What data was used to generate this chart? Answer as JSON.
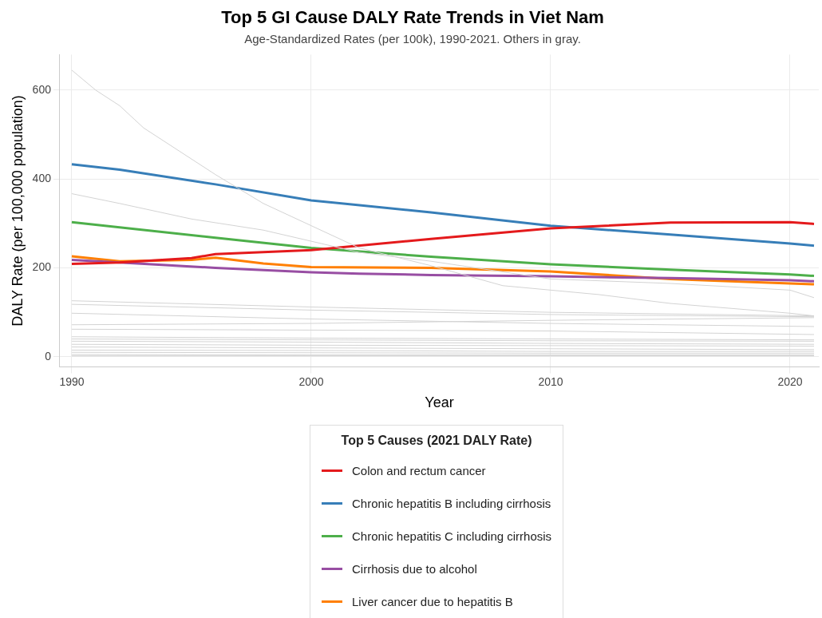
{
  "chart_data": {
    "type": "line",
    "title": "Top 5 GI Cause DALY Rate Trends in Viet Nam",
    "subtitle": "Age-Standardized Rates (per 100k), 1990-2021. Others in gray.",
    "xlabel": "Year",
    "ylabel": "DALY Rate (per 100,000 population)",
    "legend_title": "Top 5 Causes (2021 DALY Rate)",
    "xlim": [
      1989.5,
      2021.2
    ],
    "xticks": [
      1990,
      2000,
      2010,
      2020
    ],
    "ylim": [
      -23,
      680
    ],
    "yticks": [
      0,
      200,
      400,
      600
    ],
    "grid": true,
    "legend": "bottom",
    "series": [
      {
        "color": "#d3d3d3",
        "x": [
          1990,
          1991,
          1992,
          1993,
          1996,
          1998,
          2000,
          2002,
          2005,
          2008,
          2010,
          2012,
          2015,
          2020,
          2021
        ],
        "values": [
          645,
          600,
          565,
          515,
          410,
          345,
          295,
          245,
          205,
          160,
          150,
          140,
          120,
          98,
          92
        ]
      },
      {
        "color": "#d3d3d3",
        "x": [
          1990,
          1992,
          1995,
          1998,
          2000,
          2002,
          2005,
          2010,
          2015,
          2020,
          2021
        ],
        "values": [
          367,
          345,
          310,
          285,
          260,
          235,
          215,
          175,
          165,
          150,
          133
        ]
      },
      {
        "color": "#d3d3d3",
        "x": [
          1990,
          2000,
          2010,
          2021
        ],
        "values": [
          126,
          112,
          100,
          92
        ]
      },
      {
        "color": "#d3d3d3",
        "x": [
          1990,
          2000,
          2010,
          2021
        ],
        "values": [
          118,
          105,
          95,
          90
        ]
      },
      {
        "color": "#d3d3d3",
        "x": [
          1990,
          2000,
          2010,
          2021
        ],
        "values": [
          98,
          85,
          75,
          68
        ]
      },
      {
        "color": "#d3d3d3",
        "x": [
          1990,
          2000,
          2010,
          2021
        ],
        "values": [
          72,
          75,
          82,
          88
        ]
      },
      {
        "color": "#d3d3d3",
        "x": [
          1990,
          2000,
          2010,
          2021
        ],
        "values": [
          62,
          60,
          58,
          50
        ]
      },
      {
        "color": "#d3d3d3",
        "x": [
          1990,
          2000,
          2010,
          2021
        ],
        "values": [
          45,
          42,
          40,
          38
        ]
      },
      {
        "color": "#d3d3d3",
        "x": [
          1990,
          2000,
          2010,
          2021
        ],
        "values": [
          40,
          38,
          36,
          35
        ]
      },
      {
        "color": "#d3d3d3",
        "x": [
          1990,
          2000,
          2010,
          2021
        ],
        "values": [
          35,
          33,
          30,
          28
        ]
      },
      {
        "color": "#d3d3d3",
        "x": [
          1990,
          2000,
          2010,
          2021
        ],
        "values": [
          28,
          26,
          25,
          24
        ]
      },
      {
        "color": "#d3d3d3",
        "x": [
          1990,
          2000,
          2010,
          2021
        ],
        "values": [
          22,
          20,
          18,
          16
        ]
      },
      {
        "color": "#d3d3d3",
        "x": [
          1990,
          2000,
          2010,
          2021
        ],
        "values": [
          15,
          14,
          12,
          12
        ]
      },
      {
        "color": "#d3d3d3",
        "x": [
          1990,
          2000,
          2010,
          2021
        ],
        "values": [
          10,
          9,
          8,
          8
        ]
      },
      {
        "color": "#d3d3d3",
        "x": [
          1990,
          2000,
          2010,
          2021
        ],
        "values": [
          5,
          4,
          4,
          4
        ]
      },
      {
        "color": "#d3d3d3",
        "x": [
          1990,
          2000,
          2010,
          2021
        ],
        "values": [
          2,
          2,
          2,
          2
        ]
      },
      {
        "name": "Colon and rectum cancer",
        "color": "#e41a1c",
        "x": [
          1990,
          1992,
          1995,
          1996,
          2000,
          2005,
          2010,
          2015,
          2020,
          2021
        ],
        "values": [
          209,
          212,
          222,
          231,
          240,
          265,
          289,
          302,
          303,
          299
        ]
      },
      {
        "name": "Chronic hepatitis B including cirrhosis",
        "color": "#377eb8",
        "x": [
          1990,
          1992,
          1996,
          2000,
          2005,
          2010,
          2015,
          2020,
          2021
        ],
        "values": [
          433,
          421,
          388,
          352,
          325,
          295,
          275,
          255,
          250
        ]
      },
      {
        "name": "Chronic hepatitis C including cirrhosis",
        "color": "#4daf4a",
        "x": [
          1990,
          1996,
          2000,
          2005,
          2010,
          2015,
          2020,
          2021
        ],
        "values": [
          303,
          268,
          245,
          225,
          208,
          196,
          185,
          182
        ]
      },
      {
        "name": "Cirrhosis due to alcohol",
        "color": "#984ea3",
        "x": [
          1990,
          1992,
          1996,
          2000,
          2002,
          2005,
          2010,
          2015,
          2020,
          2021
        ],
        "values": [
          218,
          212,
          200,
          190,
          187,
          184,
          181,
          177,
          172,
          170
        ]
      },
      {
        "name": "Liver cancer due to hepatitis B",
        "color": "#ff7f00",
        "x": [
          1990,
          1992,
          1995,
          1996,
          1998,
          2000,
          2005,
          2010,
          2015,
          2020,
          2021
        ],
        "values": [
          226,
          215,
          218,
          223,
          210,
          202,
          200,
          192,
          175,
          165,
          163
        ]
      }
    ]
  }
}
